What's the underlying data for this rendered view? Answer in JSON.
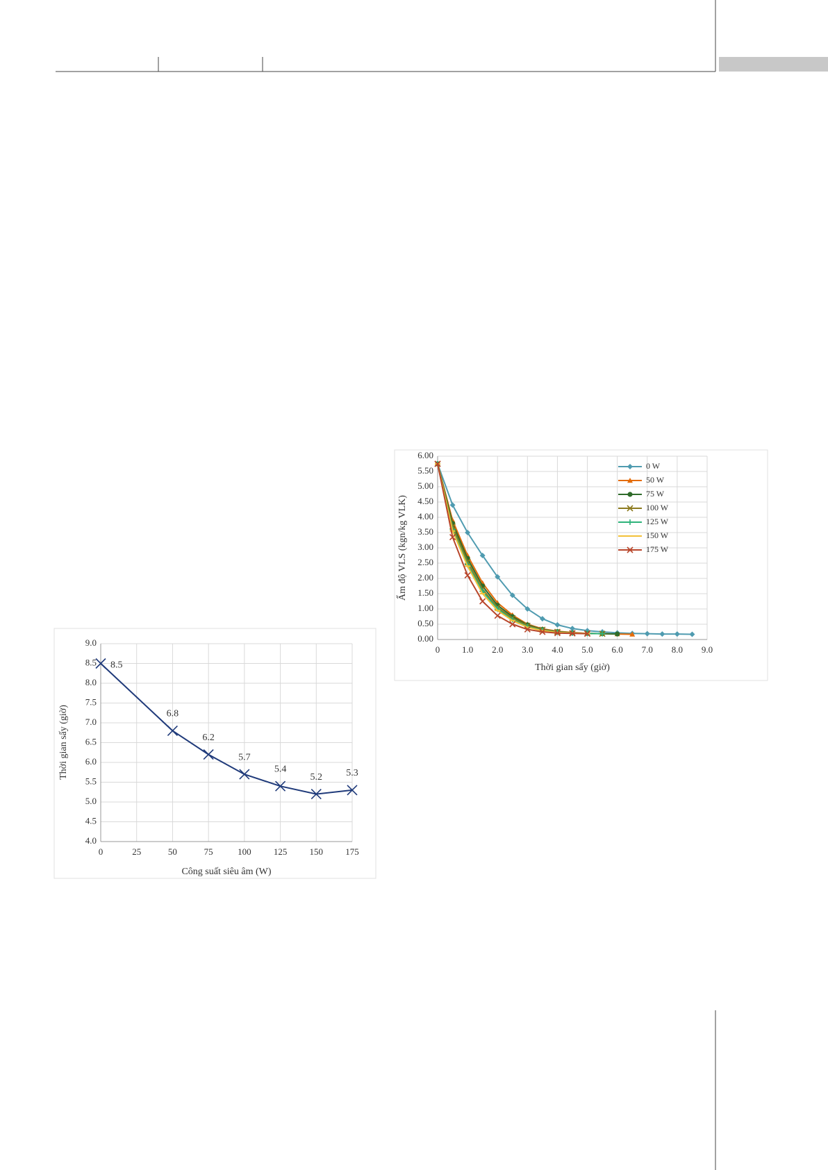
{
  "chart_data": [
    {
      "type": "line",
      "x_label": "Thời gian sấy (giờ)",
      "y_label": "Ẩm độ VLS (kgn/kg VLK)",
      "xlim": [
        0,
        9
      ],
      "ylim": [
        0,
        6
      ],
      "xticks": [
        0,
        {
          "value": 1,
          "label": "1.0"
        },
        {
          "value": 2,
          "label": "2.0"
        },
        {
          "value": 3,
          "label": "3.0"
        },
        {
          "value": 4,
          "label": "4.0"
        },
        {
          "value": 5,
          "label": "5.0"
        },
        {
          "value": 6,
          "label": "6.0"
        },
        {
          "value": 7,
          "label": "7.0"
        },
        {
          "value": 8,
          "label": "8.0"
        },
        {
          "value": 9,
          "label": "9.0"
        }
      ],
      "yticks": [
        {
          "value": 0,
          "label": "0.00"
        },
        {
          "value": 0.5,
          "label": "0.50"
        },
        {
          "value": 1,
          "label": "1.00"
        },
        {
          "value": 1.5,
          "label": "1.50"
        },
        {
          "value": 2,
          "label": "2.00"
        },
        {
          "value": 2.5,
          "label": "2.50"
        },
        {
          "value": 3,
          "label": "3.00"
        },
        {
          "value": 3.5,
          "label": "3.50"
        },
        {
          "value": 4,
          "label": "4.00"
        },
        {
          "value": 4.5,
          "label": "4.50"
        },
        {
          "value": 5,
          "label": "5.00"
        },
        {
          "value": 5.5,
          "label": "5.50"
        },
        {
          "value": 6,
          "label": "6.00"
        }
      ],
      "grid": true,
      "legend": "upper right",
      "series": [
        {
          "name": "0 W",
          "color": "#4f9bb0",
          "marker": "diamond",
          "x": [
            0,
            0.5,
            1,
            1.5,
            2,
            2.5,
            3,
            3.5,
            4,
            4.5,
            5,
            5.5,
            6,
            6.5,
            7,
            7.5,
            8,
            8.5
          ],
          "values": [
            5.75,
            4.4,
            3.5,
            2.75,
            2.05,
            1.45,
            1.0,
            0.68,
            0.48,
            0.36,
            0.29,
            0.25,
            0.22,
            0.2,
            0.19,
            0.18,
            0.18,
            0.17
          ]
        },
        {
          "name": "50 W",
          "color": "#e46c0a",
          "marker": "triangle",
          "x": [
            0,
            0.5,
            1,
            1.5,
            2,
            2.5,
            3,
            3.5,
            4,
            4.5,
            5,
            5.5,
            6,
            6.5
          ],
          "values": [
            5.75,
            3.9,
            2.75,
            1.85,
            1.2,
            0.8,
            0.5,
            0.35,
            0.27,
            0.23,
            0.2,
            0.19,
            0.18,
            0.17
          ]
        },
        {
          "name": "75 W",
          "color": "#2f6b2a",
          "marker": "circle",
          "x": [
            0,
            0.5,
            1,
            1.5,
            2,
            2.5,
            3,
            3.5,
            4,
            4.5,
            5,
            5.5,
            6
          ],
          "values": [
            5.75,
            3.8,
            2.65,
            1.75,
            1.12,
            0.75,
            0.48,
            0.33,
            0.26,
            0.22,
            0.2,
            0.19,
            0.18
          ]
        },
        {
          "name": "100 W",
          "color": "#8c7a1e",
          "marker": "x",
          "x": [
            0,
            0.5,
            1,
            1.5,
            2,
            2.5,
            3,
            3.5,
            4,
            4.5,
            5,
            5.5
          ],
          "values": [
            5.75,
            3.7,
            2.55,
            1.65,
            1.05,
            0.7,
            0.45,
            0.32,
            0.25,
            0.21,
            0.2,
            0.19
          ]
        },
        {
          "name": "125 W",
          "color": "#2db37a",
          "marker": "plus",
          "x": [
            0,
            0.5,
            1,
            1.5,
            2,
            2.5,
            3,
            3.5,
            4,
            4.5,
            5,
            5.5
          ],
          "values": [
            5.75,
            3.6,
            2.45,
            1.58,
            1.0,
            0.65,
            0.42,
            0.3,
            0.24,
            0.21,
            0.2,
            0.19
          ]
        },
        {
          "name": "150 W",
          "color": "#f2c037",
          "marker": "dash",
          "x": [
            0,
            0.5,
            1,
            1.5,
            2,
            2.5,
            3,
            3.5,
            4,
            4.5,
            5
          ],
          "values": [
            5.75,
            3.55,
            2.4,
            1.5,
            0.95,
            0.62,
            0.4,
            0.29,
            0.23,
            0.21,
            0.2
          ]
        },
        {
          "name": "175 W",
          "color": "#b8452a",
          "marker": "x",
          "x": [
            0,
            0.5,
            1,
            1.5,
            2,
            2.5,
            3,
            3.5,
            4,
            4.5,
            5
          ],
          "values": [
            5.75,
            3.35,
            2.1,
            1.25,
            0.78,
            0.5,
            0.33,
            0.25,
            0.21,
            0.2,
            0.19
          ]
        }
      ]
    },
    {
      "type": "line",
      "x_label": "Công suất siêu âm (W)",
      "y_label": "Thời gian sấy (giờ)",
      "xlim": [
        0,
        175
      ],
      "ylim": [
        4,
        9
      ],
      "xticks": [
        0,
        25,
        50,
        75,
        100,
        125,
        150,
        175
      ],
      "yticks": [
        {
          "value": 4,
          "label": "4.0"
        },
        {
          "value": 4.5,
          "label": "4.5"
        },
        {
          "value": 5,
          "label": "5.0"
        },
        {
          "value": 5.5,
          "label": "5.5"
        },
        {
          "value": 6,
          "label": "6.0"
        },
        {
          "value": 6.5,
          "label": "6.5"
        },
        {
          "value": 7,
          "label": "7.0"
        },
        {
          "value": 7.5,
          "label": "7.5"
        },
        {
          "value": 8,
          "label": "8.0"
        },
        {
          "value": 8.5,
          "label": "8.5"
        },
        {
          "value": 9,
          "label": "9.0"
        }
      ],
      "grid": true,
      "series": [
        {
          "color": "#1f3a7a",
          "marker": "x",
          "data_labels": true,
          "x": [
            0,
            50,
            75,
            100,
            125,
            150,
            175
          ],
          "values": [
            8.5,
            6.8,
            6.2,
            5.7,
            5.4,
            5.2,
            5.3
          ]
        }
      ]
    }
  ]
}
